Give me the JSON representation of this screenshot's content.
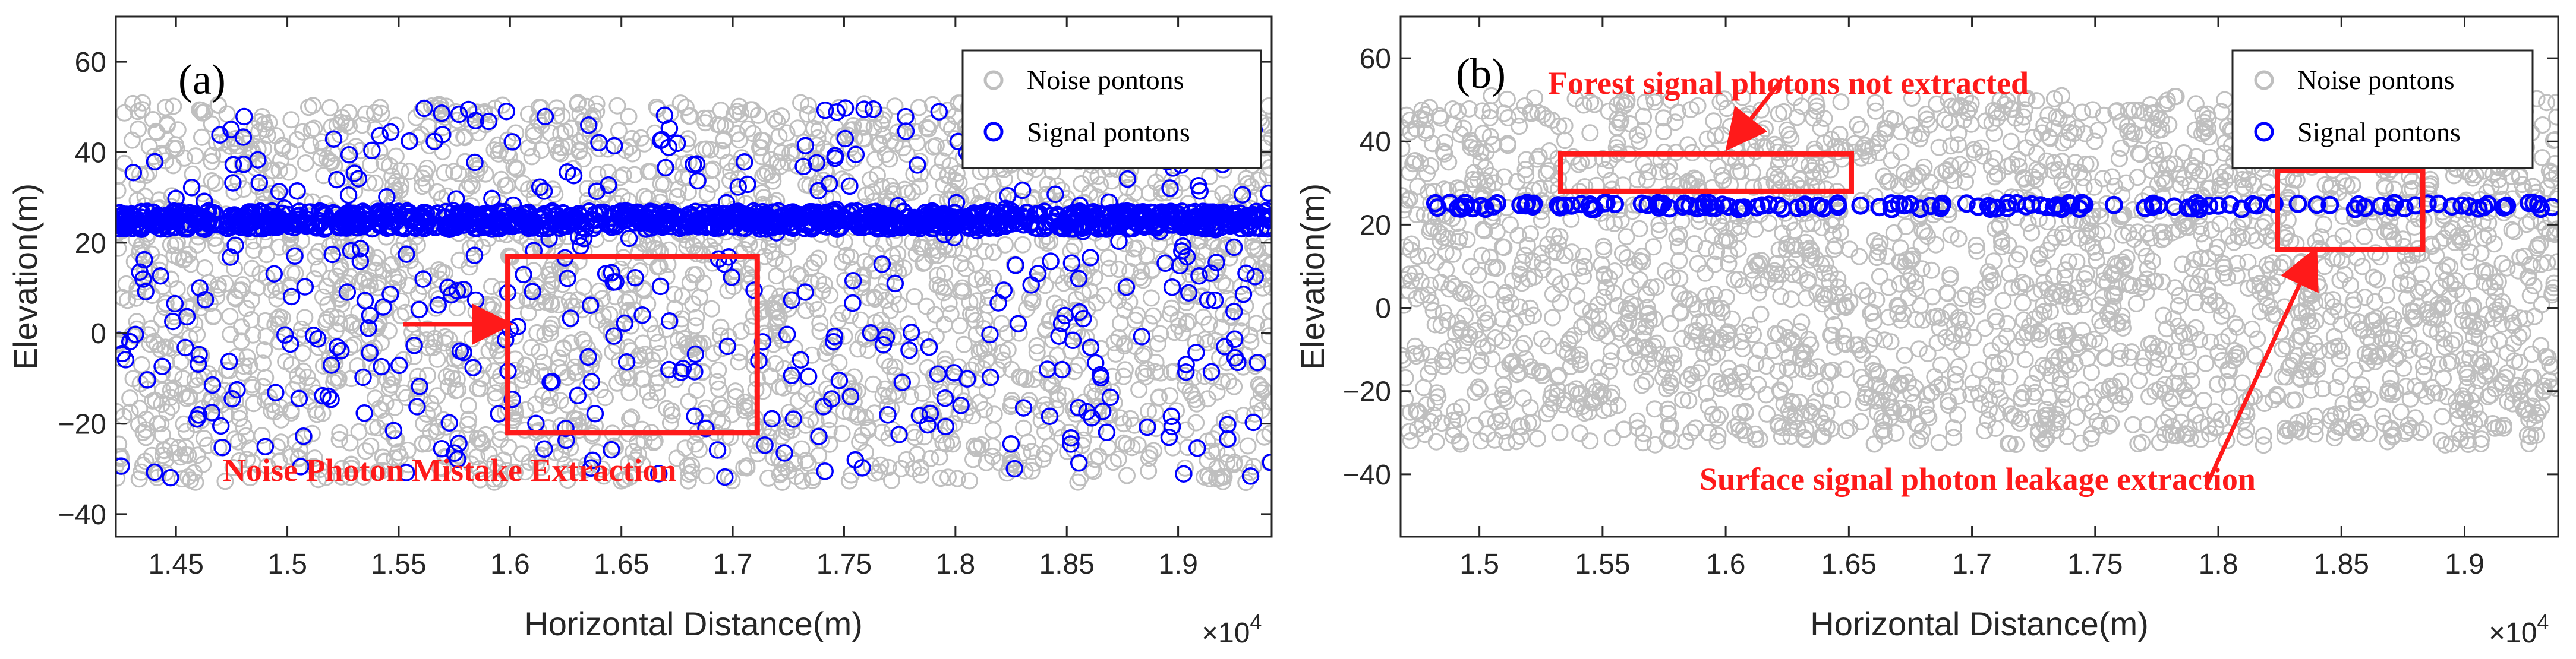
{
  "chart_data": [
    {
      "type": "scatter",
      "panel_label": "(a)",
      "xlabel": "Horizontal Distance(m)",
      "ylabel": "Elevation(m)",
      "xlim": [
        14230,
        19420
      ],
      "ylim": [
        -45,
        70
      ],
      "x_exponent_label": "×10",
      "x_exponent_power": "4",
      "x_ticks": [
        14500,
        15000,
        15500,
        16000,
        16500,
        17000,
        17500,
        18000,
        18500,
        19000
      ],
      "x_tick_labels": [
        "1.45",
        "1.5",
        "1.55",
        "1.6",
        "1.65",
        "1.7",
        "1.75",
        "1.8",
        "1.85",
        "1.9"
      ],
      "y_ticks": [
        -40,
        -20,
        0,
        20,
        40,
        60
      ],
      "y_tick_labels": [
        "−40",
        "−20",
        "0",
        "20",
        "40",
        "60"
      ],
      "legend": {
        "position": "top-right",
        "entries": [
          "Noise pontons",
          "Signal pontons"
        ]
      },
      "series": [
        {
          "name": "Noise pontons",
          "color": "#bfbfbf",
          "marker": "circle-open",
          "y_band": [
            -33,
            51
          ],
          "approx_count": 2600
        },
        {
          "name": "Signal pontons",
          "color": "#0000ff",
          "marker": "circle-open",
          "line_y": 25,
          "scattered_y_band": [
            -32,
            50
          ],
          "approx_scattered_count": 420
        }
      ],
      "annotations": [
        {
          "text": "Noise Photon Mistake Extraction",
          "color": "#ff1a1a"
        }
      ],
      "highlight_boxes": [
        {
          "x": [
            15990,
            17110
          ],
          "y": [
            -22,
            17
          ],
          "color": "#ff1a1a"
        }
      ],
      "arrows": [
        {
          "from": [
            15520,
            2
          ],
          "to": [
            15960,
            2
          ],
          "color": "#ff1a1a"
        }
      ]
    },
    {
      "type": "scatter",
      "panel_label": "(b)",
      "xlabel": "Horizontal Distance(m)",
      "ylabel": "Elevation(m)",
      "xlim": [
        14680,
        19380
      ],
      "ylim": [
        -55,
        70
      ],
      "x_exponent_label": "×10",
      "x_exponent_power": "4",
      "x_ticks": [
        15000,
        15500,
        16000,
        16500,
        17000,
        17500,
        18000,
        18500,
        19000
      ],
      "x_tick_labels": [
        "1.5",
        "1.55",
        "1.6",
        "1.65",
        "1.7",
        "1.75",
        "1.8",
        "1.85",
        "1.9"
      ],
      "y_ticks": [
        -40,
        -20,
        0,
        20,
        40,
        60
      ],
      "y_tick_labels": [
        "−40",
        "−20",
        "0",
        "20",
        "40",
        "60"
      ],
      "legend": {
        "position": "top-right",
        "entries": [
          "Noise pontons",
          "Signal pontons"
        ]
      },
      "series": [
        {
          "name": "Noise pontons",
          "color": "#bfbfbf",
          "marker": "circle-open",
          "y_band": [
            -33,
            51
          ],
          "approx_count": 2600
        },
        {
          "name": "Signal pontons",
          "color": "#0000ff",
          "marker": "circle-open",
          "line_y": 24.5,
          "x_range": [
            14710,
            19360
          ],
          "approx_count": 150
        }
      ],
      "annotations": [
        {
          "text": "Forest signal photons not extracted",
          "color": "#ff1a1a"
        },
        {
          "text": "Surface signal photon leakage extraction",
          "color": "#ff1a1a"
        }
      ],
      "highlight_boxes": [
        {
          "x": [
            15330,
            16510
          ],
          "y": [
            28,
            37
          ],
          "color": "#ff1a1a"
        },
        {
          "x": [
            18240,
            18830
          ],
          "y": [
            14,
            33
          ],
          "color": "#ff1a1a"
        }
      ],
      "arrows": [
        {
          "from": [
            16230,
            55
          ],
          "to": [
            16030,
            40
          ],
          "color": "#ff1a1a"
        },
        {
          "from": [
            17950,
            -43
          ],
          "to": [
            18380,
            12
          ],
          "color": "#ff1a1a"
        }
      ]
    }
  ]
}
